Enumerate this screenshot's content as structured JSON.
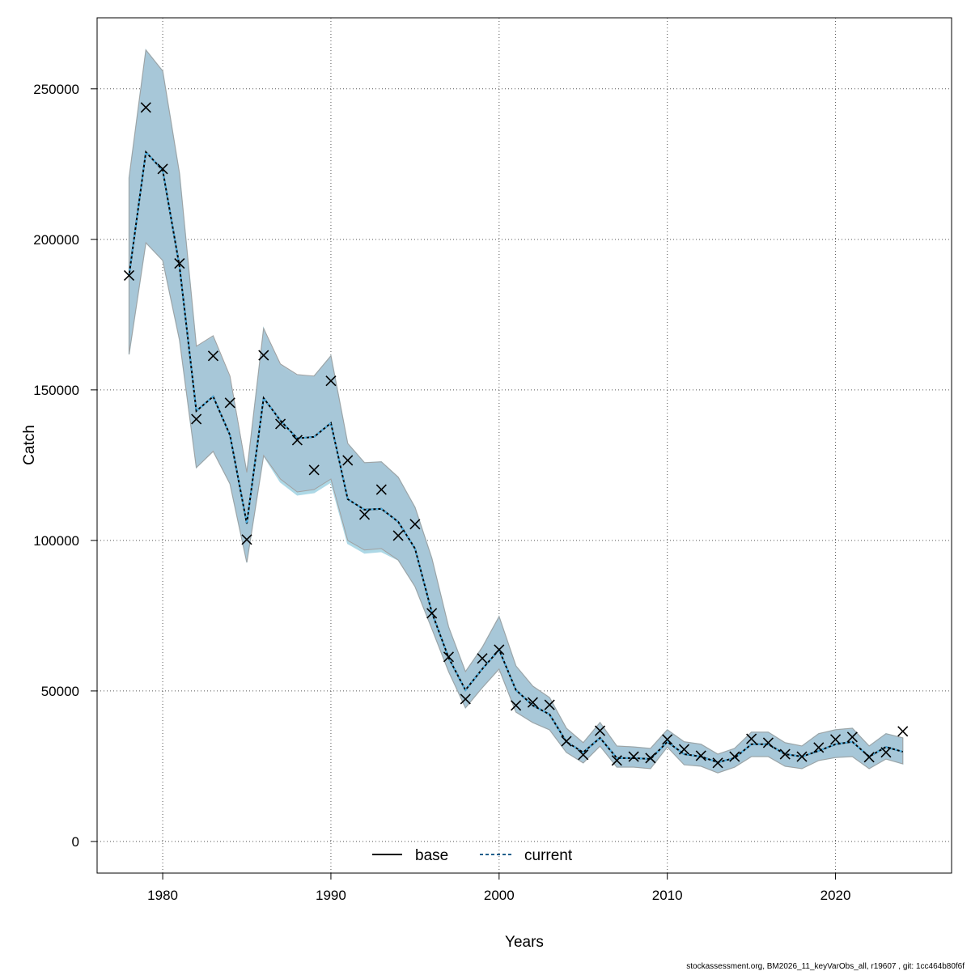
{
  "chart_data": {
    "type": "line",
    "title": "",
    "xlabel": "Years",
    "ylabel": "Catch",
    "xlim": [
      1976.1,
      2026.9
    ],
    "ylim": [
      -10500,
      273600
    ],
    "grid": true,
    "x_ticks": [
      1980,
      1990,
      2000,
      2010,
      2020
    ],
    "y_ticks": [
      0,
      50000,
      100000,
      150000,
      200000,
      250000
    ],
    "legend": {
      "placement": "bottom-center",
      "entries": [
        {
          "label": "base",
          "style": "solid",
          "color": "#000000"
        },
        {
          "label": "current",
          "style": "dashed",
          "color": "#1f5f8b"
        }
      ]
    },
    "colors": {
      "band": "#a6c6d7",
      "base_band_edge": "#a0a0a0",
      "current_band_edge": "#add8e6",
      "current_line": "#4fb3e6"
    },
    "x": [
      1978,
      1979,
      1980,
      1981,
      1982,
      1983,
      1984,
      1985,
      1986,
      1987,
      1988,
      1989,
      1990,
      1991,
      1992,
      1993,
      1994,
      1995,
      1996,
      1997,
      1998,
      1999,
      2000,
      2001,
      2002,
      2003,
      2004,
      2005,
      2006,
      2007,
      2008,
      2009,
      2010,
      2011,
      2012,
      2013,
      2014,
      2015,
      2016,
      2017,
      2018,
      2019,
      2020,
      2021,
      2022,
      2023,
      2024
    ],
    "series": [
      {
        "name": "base",
        "values": [
          188000,
          229000,
          223000,
          191000,
          143000,
          147800,
          135000,
          105600,
          147300,
          139800,
          133900,
          134400,
          139000,
          113700,
          110200,
          110500,
          106200,
          97300,
          76100,
          61000,
          50300,
          57300,
          63700,
          50300,
          45200,
          42200,
          33100,
          29600,
          34400,
          27700,
          27700,
          27400,
          33100,
          29000,
          28200,
          26300,
          27700,
          32300,
          32300,
          29000,
          28200,
          30100,
          32300,
          33100,
          28200,
          31400,
          29800
        ],
        "upper": [
          220400,
          262900,
          255900,
          221800,
          164500,
          168000,
          154600,
          122600,
          170400,
          158600,
          155100,
          154600,
          161300,
          132200,
          125800,
          126100,
          121000,
          111000,
          94100,
          71200,
          56400,
          64500,
          74700,
          58300,
          51600,
          47800,
          37600,
          32800,
          39500,
          31700,
          31400,
          30900,
          37100,
          33100,
          32300,
          29000,
          30900,
          36300,
          36300,
          32800,
          31700,
          35800,
          37100,
          37600,
          31700,
          35800,
          34400
        ],
        "lower": [
          161800,
          198900,
          193000,
          166600,
          124200,
          129600,
          118800,
          92700,
          128200,
          120400,
          116100,
          116900,
          120400,
          100000,
          96800,
          97300,
          93500,
          84700,
          70700,
          56400,
          44400,
          51100,
          57300,
          43000,
          39500,
          37100,
          29600,
          26100,
          31700,
          24700,
          24700,
          24200,
          31400,
          25500,
          25000,
          22800,
          24700,
          28200,
          28200,
          25000,
          24200,
          26900,
          27900,
          28200,
          24200,
          27400,
          25800
        ]
      },
      {
        "name": "current",
        "values": [
          188000,
          229000,
          223000,
          191000,
          143000,
          147800,
          135000,
          105600,
          147300,
          139800,
          133900,
          134400,
          139000,
          113700,
          110200,
          110500,
          106200,
          97300,
          76100,
          61000,
          50300,
          57300,
          63700,
          50300,
          45200,
          42200,
          33100,
          29600,
          34400,
          27700,
          27700,
          27400,
          33100,
          29000,
          28200,
          26300,
          27700,
          32300,
          32300,
          29000,
          28200,
          30100,
          32300,
          33100,
          28200,
          31400,
          29800
        ],
        "upper": [
          220400,
          262900,
          255900,
          221800,
          164500,
          167000,
          153600,
          122600,
          170400,
          157600,
          154100,
          154600,
          161300,
          132200,
          125800,
          126100,
          121000,
          111000,
          94100,
          71200,
          56400,
          64500,
          74700,
          58300,
          51600,
          47800,
          37600,
          32800,
          39500,
          31700,
          31400,
          30900,
          37100,
          33100,
          32300,
          29000,
          30900,
          36300,
          36300,
          32800,
          31700,
          35800,
          37100,
          37600,
          31700,
          35800,
          34400
        ],
        "lower": [
          161800,
          198900,
          193000,
          166600,
          124200,
          129600,
          118800,
          92700,
          128200,
          119400,
          115100,
          115900,
          119400,
          99000,
          95800,
          96300,
          93500,
          84700,
          70700,
          56400,
          44400,
          51100,
          57300,
          43000,
          39500,
          37100,
          29600,
          26100,
          31700,
          24700,
          24700,
          24200,
          31400,
          25500,
          25000,
          22800,
          24700,
          28200,
          28200,
          25000,
          24200,
          26900,
          27900,
          28200,
          24200,
          27400,
          25800
        ]
      }
    ],
    "observations": [
      188000,
      243800,
      223400,
      192000,
      140300,
      161300,
      145700,
      100300,
      161500,
      138700,
      133300,
      123400,
      153000,
      126600,
      108600,
      116900,
      101600,
      105400,
      75800,
      61300,
      47300,
      60800,
      63700,
      45200,
      46200,
      45400,
      33300,
      28800,
      36800,
      26900,
      28200,
      27700,
      33900,
      30600,
      28500,
      26100,
      28200,
      34100,
      32800,
      29000,
      28200,
      31200,
      33900,
      34700,
      28000,
      29600,
      36600
    ]
  },
  "footer": {
    "caption": "stockassessment.org, BM2026_11_keyVarObs_all, r19607 , git: 1cc464b80f6f"
  }
}
